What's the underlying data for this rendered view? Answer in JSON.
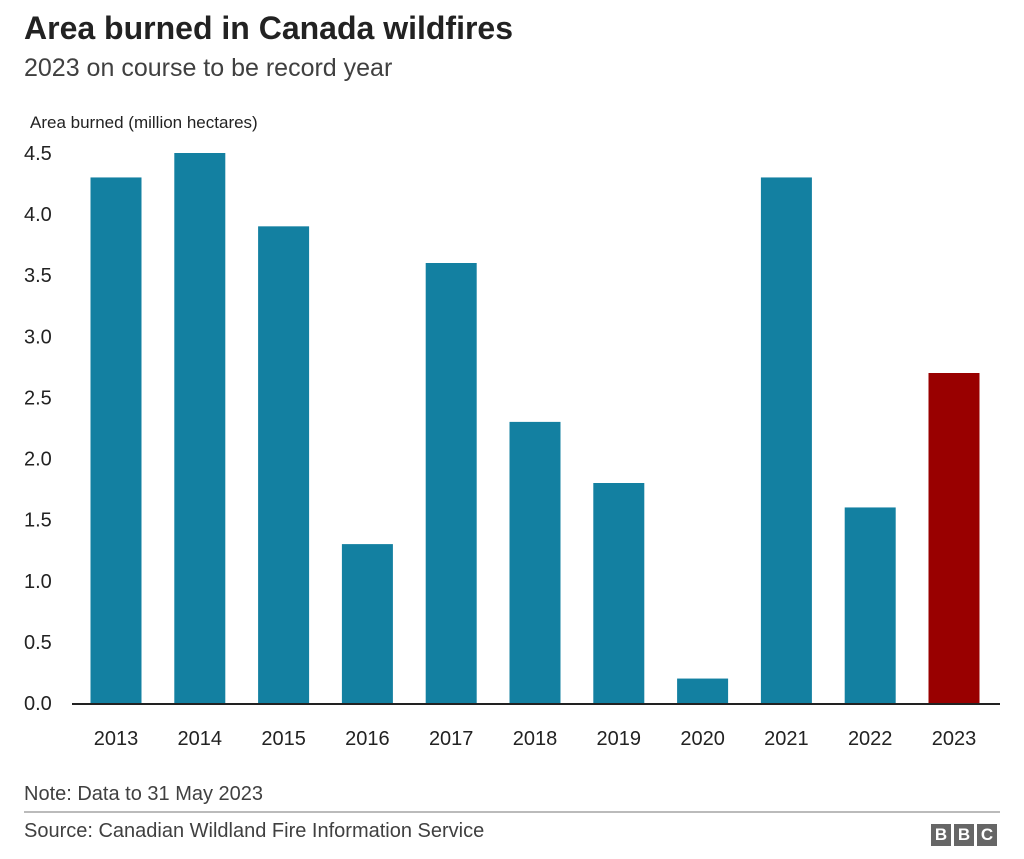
{
  "chart_data": {
    "type": "bar",
    "title": "Area burned in Canada wildfires",
    "subtitle": "2023 on course to be record year",
    "ylabel": "Area burned (million hectares)",
    "xlabel": "",
    "categories": [
      "2013",
      "2014",
      "2015",
      "2016",
      "2017",
      "2018",
      "2019",
      "2020",
      "2021",
      "2022",
      "2023"
    ],
    "values": [
      4.3,
      4.5,
      3.9,
      1.3,
      3.6,
      2.3,
      1.8,
      0.2,
      4.3,
      1.6,
      2.7
    ],
    "ylim": [
      0,
      4.5
    ],
    "yticks": [
      "0.0",
      "0.5",
      "1.0",
      "1.5",
      "2.0",
      "2.5",
      "3.0",
      "3.5",
      "4.0",
      "4.5"
    ],
    "grid": false,
    "colors": {
      "default": "#1380a1",
      "highlight": "#990000"
    },
    "highlight_category": "2023"
  },
  "footer": {
    "note": "Note: Data to 31 May 2023",
    "source": "Source: Canadian Wildland Fire Information Service",
    "logo": "BBC"
  }
}
